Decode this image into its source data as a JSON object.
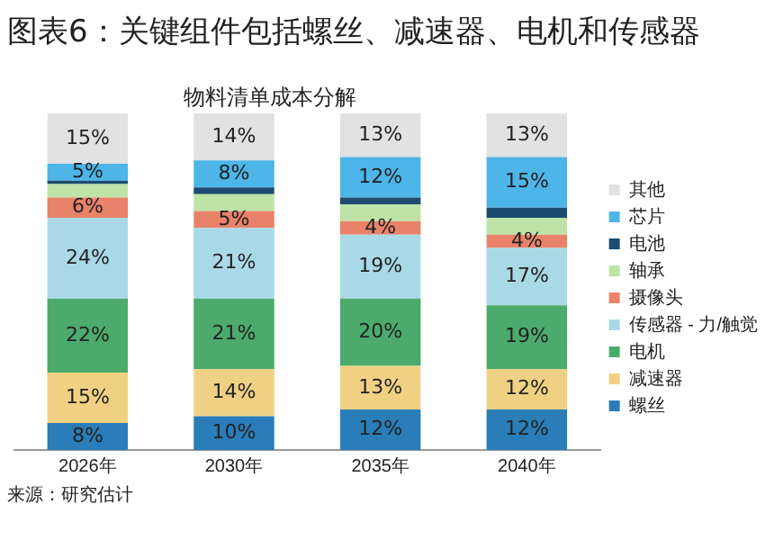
{
  "chart_data": {
    "type": "bar",
    "title": "图表6：关键组件包括螺丝、减速器、电机和传感器",
    "subtitle": "物料清单成本分解",
    "categories": [
      "2026年",
      "2030年",
      "2035年",
      "2040年"
    ],
    "stacked": true,
    "legend": "right",
    "grid": false,
    "tick_labels": "x",
    "annotations": [
      "来源：研究估计"
    ],
    "series": [
      {
        "name": "螺丝",
        "color": "#2a7db8",
        "values": [
          8,
          10,
          12,
          12
        ],
        "value_labels": [
          "8%",
          "10%",
          "12%",
          "12%"
        ]
      },
      {
        "name": "减速器",
        "color": "#f0d184",
        "values": [
          15,
          14,
          13,
          12
        ],
        "value_labels": [
          "15%",
          "14%",
          "13%",
          "12%"
        ]
      },
      {
        "name": "电机",
        "color": "#4cab6c",
        "values": [
          22,
          21,
          20,
          19
        ],
        "value_labels": [
          "22%",
          "21%",
          "20%",
          "19%"
        ]
      },
      {
        "name": "传感器 - 力/触觉",
        "color": "#a9d9e6",
        "values": [
          24,
          21,
          19,
          17
        ],
        "value_labels": [
          "24%",
          "21%",
          "19%",
          "17%"
        ]
      },
      {
        "name": "摄像头",
        "color": "#e9826a",
        "values": [
          6,
          5,
          4,
          4
        ],
        "value_labels": [
          "6%",
          "5%",
          "4%",
          "4%"
        ]
      },
      {
        "name": "轴承",
        "color": "#bde3a6",
        "values": [
          4,
          5,
          5,
          5
        ],
        "value_labels": [
          null,
          null,
          null,
          null
        ]
      },
      {
        "name": "电池",
        "color": "#1b4c70",
        "values": [
          1,
          2,
          2,
          3
        ],
        "value_labels": [
          null,
          null,
          null,
          null
        ]
      },
      {
        "name": "芯片",
        "color": "#4db5e8",
        "values": [
          5,
          8,
          12,
          15
        ],
        "value_labels": [
          "5%",
          "8%",
          "12%",
          "15%"
        ]
      },
      {
        "name": "其他",
        "color": "#e2e2e2",
        "values": [
          15,
          14,
          13,
          13
        ],
        "value_labels": [
          "15%",
          "14%",
          "13%",
          "13%"
        ]
      }
    ]
  }
}
